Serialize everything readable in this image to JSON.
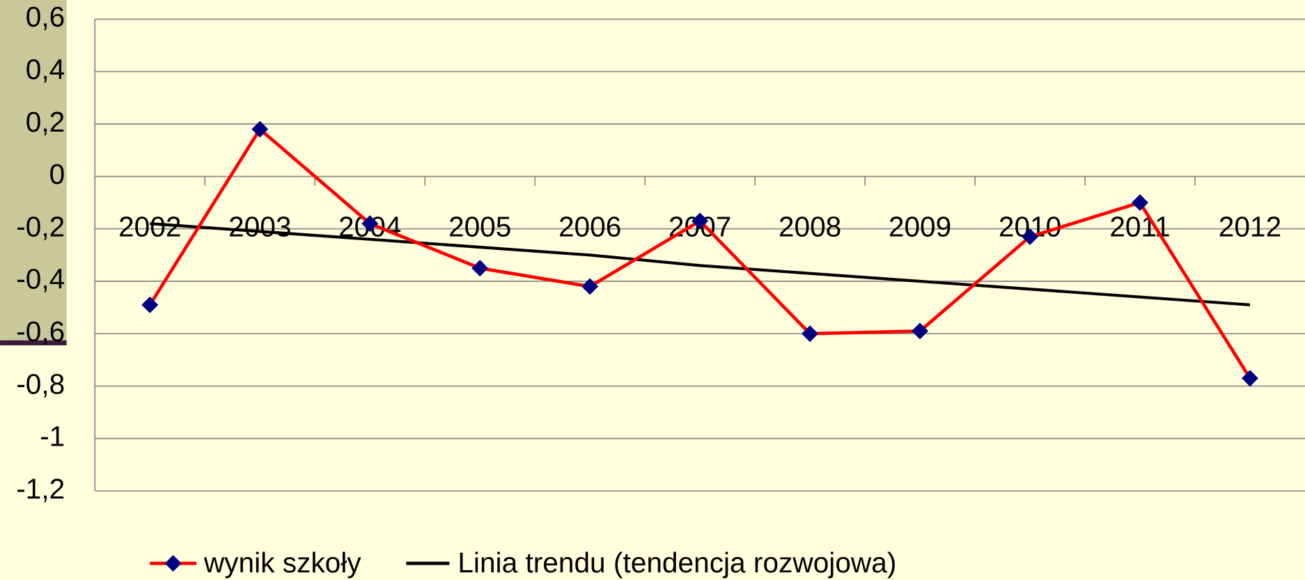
{
  "chart_data": {
    "type": "line",
    "categories": [
      "2002",
      "2003",
      "2004",
      "2005",
      "2006",
      "2007",
      "2008",
      "2009",
      "2010",
      "2011",
      "2012"
    ],
    "series": [
      {
        "name": "wynik szkoły",
        "color": "#ff0000",
        "marker_color": "#000080",
        "values": [
          -0.49,
          0.18,
          -0.18,
          -0.35,
          -0.42,
          -0.17,
          -0.6,
          -0.59,
          -0.23,
          -0.1,
          -0.77
        ]
      },
      {
        "name": "Linia trendu (tendencja rozwojowa)",
        "color": "#000000",
        "values": [
          -0.18,
          -0.21,
          -0.24,
          -0.27,
          -0.3,
          -0.34,
          -0.37,
          -0.4,
          -0.43,
          -0.46,
          -0.49
        ]
      }
    ],
    "ylim": [
      -1.2,
      0.6
    ],
    "yticks": [
      {
        "value": -1.2,
        "label": "-1,2"
      },
      -1,
      {
        "value": -0.8,
        "label": "-0,8"
      },
      {
        "value": -0.6,
        "label": "-0,6"
      },
      {
        "value": -0.4,
        "label": "-0,4"
      },
      {
        "value": -0.2,
        "label": "-0,2"
      },
      0,
      {
        "value": 0.2,
        "label": "0,2"
      },
      {
        "value": 0.4,
        "label": "0,4"
      },
      {
        "value": 0.6,
        "label": "0,6"
      }
    ],
    "grid": true,
    "legend": "bottom"
  }
}
